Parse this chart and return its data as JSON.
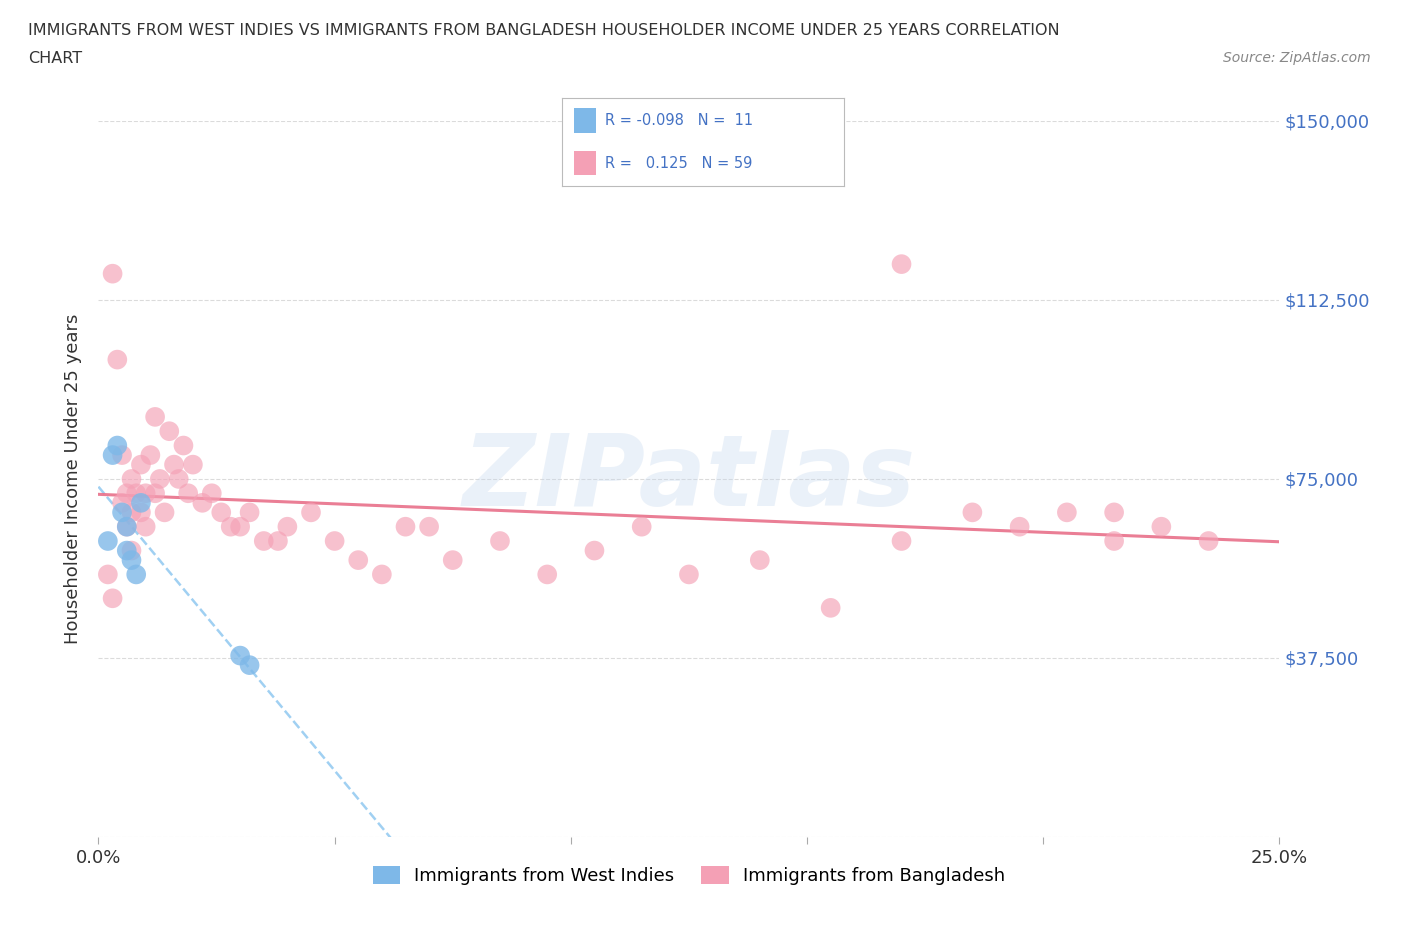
{
  "title_line1": "IMMIGRANTS FROM WEST INDIES VS IMMIGRANTS FROM BANGLADESH HOUSEHOLDER INCOME UNDER 25 YEARS CORRELATION",
  "title_line2": "CHART",
  "source": "Source: ZipAtlas.com",
  "ylabel": "Householder Income Under 25 years",
  "xlim": [
    0.0,
    0.25
  ],
  "ylim": [
    0,
    150000
  ],
  "yticks": [
    0,
    37500,
    75000,
    112500,
    150000
  ],
  "ytick_labels_right": [
    "",
    "$37,500",
    "$75,000",
    "$112,500",
    "$150,000"
  ],
  "xticks": [
    0.0,
    0.05,
    0.1,
    0.15,
    0.2,
    0.25
  ],
  "xtick_labels": [
    "0.0%",
    "",
    "",
    "",
    "",
    "25.0%"
  ],
  "color_blue": "#7EB8E8",
  "color_pink": "#F4A0B5",
  "R_blue": -0.098,
  "N_blue": 11,
  "R_pink": 0.125,
  "N_pink": 59,
  "legend_label_blue": "Immigrants from West Indies",
  "legend_label_pink": "Immigrants from Bangladesh",
  "watermark": "ZIPatlas",
  "background_color": "#ffffff",
  "blue_x": [
    0.002,
    0.003,
    0.004,
    0.005,
    0.006,
    0.006,
    0.007,
    0.008,
    0.009,
    0.03,
    0.032
  ],
  "blue_y": [
    62000,
    80000,
    82000,
    68000,
    65000,
    60000,
    58000,
    55000,
    70000,
    38000,
    36000
  ],
  "pink_x": [
    0.002,
    0.003,
    0.004,
    0.005,
    0.005,
    0.006,
    0.006,
    0.007,
    0.007,
    0.008,
    0.009,
    0.009,
    0.01,
    0.01,
    0.011,
    0.012,
    0.012,
    0.013,
    0.014,
    0.015,
    0.016,
    0.017,
    0.018,
    0.019,
    0.02,
    0.022,
    0.024,
    0.026,
    0.028,
    0.03,
    0.032,
    0.035,
    0.038,
    0.04,
    0.045,
    0.05,
    0.055,
    0.06,
    0.065,
    0.07,
    0.075,
    0.085,
    0.095,
    0.105,
    0.115,
    0.125,
    0.14,
    0.155,
    0.17,
    0.185,
    0.195,
    0.205,
    0.215,
    0.17,
    0.215,
    0.225,
    0.235,
    0.003,
    0.007
  ],
  "pink_y": [
    55000,
    118000,
    100000,
    70000,
    80000,
    72000,
    65000,
    68000,
    75000,
    72000,
    68000,
    78000,
    65000,
    72000,
    80000,
    72000,
    88000,
    75000,
    68000,
    85000,
    78000,
    75000,
    82000,
    72000,
    78000,
    70000,
    72000,
    68000,
    65000,
    65000,
    68000,
    62000,
    62000,
    65000,
    68000,
    62000,
    58000,
    55000,
    65000,
    65000,
    58000,
    62000,
    55000,
    60000,
    65000,
    55000,
    58000,
    48000,
    62000,
    68000,
    65000,
    68000,
    62000,
    120000,
    68000,
    65000,
    62000,
    50000,
    60000
  ]
}
